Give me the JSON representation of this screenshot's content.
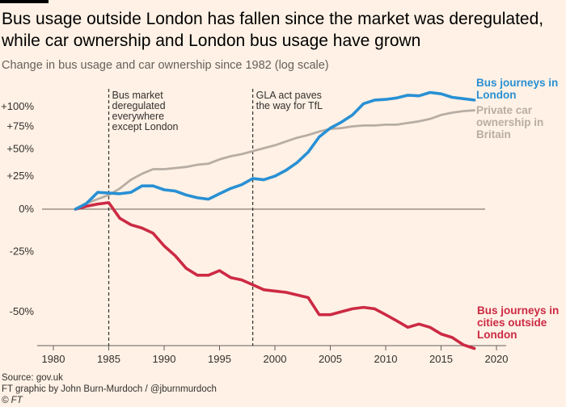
{
  "header": {
    "title": "Bus usage outside London has fallen since the market was deregulated, while car ownership and London bus usage have grown",
    "subtitle": "Change in bus usage and car ownership since 1982 (log scale)"
  },
  "footer": {
    "source": "Source: gov.uk",
    "credit": "FT graphic by John Burn-Murdoch / @jburnmurdoch",
    "copyright": "© FT"
  },
  "chart_data": {
    "type": "line",
    "title": "Bus usage outside London has fallen since the market was deregulated, while car ownership and London bus usage have grown",
    "subtitle": "Change in bus usage and car ownership since 1982 (log scale)",
    "xlabel": "",
    "ylabel": "",
    "y_scale": "log",
    "xlim": [
      1978,
      2021
    ],
    "ylim": [
      -62,
      120
    ],
    "x_ticks": [
      1980,
      1985,
      1990,
      1995,
      2000,
      2005,
      2010,
      2015,
      2020
    ],
    "x_tick_labels": [
      "1980",
      "1985",
      "1990",
      "1995",
      "2000",
      "2005",
      "2010",
      "2015",
      "2020"
    ],
    "y_ticks": [
      100,
      75,
      50,
      25,
      0,
      -25,
      -50
    ],
    "y_tick_labels": [
      "+100%",
      "+75%",
      "+50%",
      "+25%",
      "0%",
      "-25%",
      "-50%"
    ],
    "series": [
      {
        "name": "Bus journeys in London",
        "label_lines": [
          "Bus journeys in",
          "London"
        ],
        "color": "#2890d4",
        "x": [
          1982,
          1983,
          1984,
          1985,
          1986,
          1987,
          1988,
          1989,
          1990,
          1991,
          1992,
          1993,
          1994,
          1995,
          1996,
          1997,
          1998,
          1999,
          2000,
          2001,
          2002,
          2003,
          2004,
          2005,
          2006,
          2007,
          2008,
          2009,
          2010,
          2011,
          2012,
          2013,
          2014,
          2015,
          2016,
          2017,
          2018
        ],
        "values": [
          0,
          4,
          12,
          11.5,
          11,
          12,
          17,
          17,
          14,
          13,
          10,
          8,
          7,
          11,
          15,
          18,
          23,
          22,
          25,
          30,
          37,
          47,
          63,
          73,
          80,
          89,
          104,
          109,
          110,
          112,
          116,
          115,
          120,
          118,
          113,
          111,
          109
        ]
      },
      {
        "name": "Private car ownership in Britain",
        "label_lines": [
          "Private car",
          "ownership in",
          "Britain"
        ],
        "color": "#b8ada4",
        "x": [
          1982,
          1983,
          1984,
          1985,
          1986,
          1987,
          1988,
          1989,
          1990,
          1991,
          1992,
          1993,
          1994,
          1995,
          1996,
          1997,
          1998,
          1999,
          2000,
          2001,
          2002,
          2003,
          2004,
          2005,
          2006,
          2007,
          2008,
          2009,
          2010,
          2011,
          2012,
          2013,
          2014,
          2015,
          2016,
          2017,
          2018
        ],
        "values": [
          0,
          4,
          7,
          10,
          15,
          22,
          27,
          31,
          31,
          32,
          33,
          35,
          36,
          40,
          43,
          45,
          48,
          51,
          54,
          58,
          62,
          65,
          69,
          72,
          73,
          75,
          76,
          76,
          77,
          77,
          79,
          81,
          84,
          89,
          92,
          94,
          95
        ]
      },
      {
        "name": "Bus journeys in cities outside London",
        "label_lines": [
          "Bus journeys in",
          "cities outside",
          "London"
        ],
        "color": "#cc2a44",
        "x": [
          1982,
          1983,
          1984,
          1985,
          1986,
          1987,
          1988,
          1989,
          1990,
          1991,
          1992,
          1993,
          1994,
          1995,
          1996,
          1997,
          1998,
          1999,
          2000,
          2001,
          2002,
          2003,
          2004,
          2005,
          2006,
          2007,
          2008,
          2009,
          2010,
          2011,
          2012,
          2013,
          2014,
          2015,
          2016,
          2017,
          2018
        ],
        "values": [
          0,
          2,
          3.5,
          4.5,
          -6,
          -10,
          -12,
          -15,
          -22,
          -27,
          -33,
          -36,
          -36,
          -34,
          -37,
          -38,
          -40,
          -42,
          -42.5,
          -43,
          -44,
          -45,
          -51,
          -51,
          -50,
          -49,
          -48.5,
          -49,
          -51,
          -53,
          -55,
          -54,
          -55,
          -57,
          -58,
          -60,
          -61
        ]
      }
    ],
    "annotations": [
      {
        "x": 1985,
        "lines": [
          "Bus market",
          "deregulated",
          "everywhere",
          "except London"
        ]
      },
      {
        "x": 1998,
        "lines": [
          "GLA act paves",
          "the way for TfL"
        ]
      }
    ]
  }
}
